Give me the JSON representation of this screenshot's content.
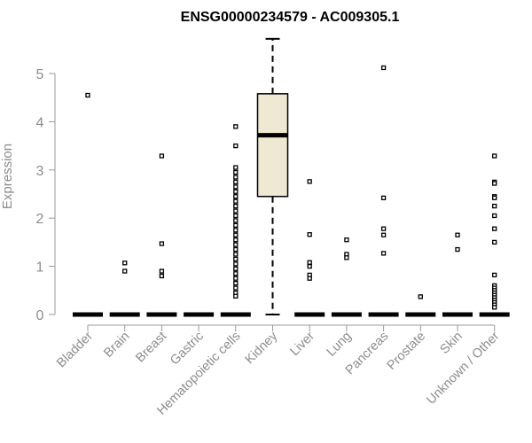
{
  "chart_data": {
    "type": "boxplot",
    "title": "ENSG00000234579 - AC009305.1",
    "xlabel": "",
    "ylabel": "Expression",
    "ylim": [
      0,
      5.7
    ],
    "yticks": [
      0,
      1,
      2,
      3,
      4,
      5
    ],
    "categories": [
      "Bladder",
      "Brain",
      "Breast",
      "Gastric",
      "Hematopoietic cells",
      "Kidney",
      "Liver",
      "Lung",
      "Pancreas",
      "Prostate",
      "Skin",
      "Unknown / Other"
    ],
    "boxes": [
      {
        "category": "Bladder",
        "min": 0,
        "q1": 0,
        "median": 0,
        "q3": 0,
        "max": 0,
        "outliers": [
          4.55
        ]
      },
      {
        "category": "Brain",
        "min": 0,
        "q1": 0,
        "median": 0,
        "q3": 0,
        "max": 0,
        "outliers": [
          1.07,
          0.9
        ]
      },
      {
        "category": "Breast",
        "min": 0,
        "q1": 0,
        "median": 0,
        "q3": 0,
        "max": 0,
        "outliers": [
          3.29,
          1.47,
          0.9,
          0.8
        ]
      },
      {
        "category": "Gastric",
        "min": 0,
        "q1": 0,
        "median": 0,
        "q3": 0,
        "max": 0,
        "outliers": []
      },
      {
        "category": "Hematopoietic cells",
        "min": 0,
        "q1": 0,
        "median": 0,
        "q3": 0,
        "max": 0,
        "outliers": [
          3.9,
          3.5,
          3.05,
          2.95,
          2.85,
          2.75,
          2.65,
          2.55,
          2.45,
          2.35,
          2.25,
          2.15,
          2.05,
          1.95,
          1.85,
          1.75,
          1.65,
          1.55,
          1.45,
          1.35,
          1.25,
          1.15,
          1.05,
          0.95,
          0.85,
          0.75,
          0.65,
          0.55,
          0.45,
          0.38
        ]
      },
      {
        "category": "Kidney",
        "min": 0,
        "q1": 2.45,
        "median": 3.72,
        "q3": 4.58,
        "max": 5.72,
        "outliers": []
      },
      {
        "category": "Liver",
        "min": 0,
        "q1": 0,
        "median": 0,
        "q3": 0,
        "max": 0,
        "outliers": [
          2.76,
          1.66,
          1.08,
          1.0,
          0.82,
          0.75
        ]
      },
      {
        "category": "Lung",
        "min": 0,
        "q1": 0,
        "median": 0,
        "q3": 0,
        "max": 0,
        "outliers": [
          1.55,
          1.25,
          1.18
        ]
      },
      {
        "category": "Pancreas",
        "min": 0,
        "q1": 0,
        "median": 0,
        "q3": 0,
        "max": 0,
        "outliers": [
          5.12,
          2.42,
          1.78,
          1.65,
          1.27
        ]
      },
      {
        "category": "Prostate",
        "min": 0,
        "q1": 0,
        "median": 0,
        "q3": 0,
        "max": 0,
        "outliers": [
          0.37
        ]
      },
      {
        "category": "Skin",
        "min": 0,
        "q1": 0,
        "median": 0,
        "q3": 0,
        "max": 0,
        "outliers": [
          1.65,
          1.35
        ]
      },
      {
        "category": "Unknown / Other",
        "min": 0,
        "q1": 0,
        "median": 0,
        "q3": 0,
        "max": 0,
        "outliers": [
          3.29,
          2.75,
          2.72,
          2.45,
          2.42,
          2.25,
          2.05,
          1.78,
          1.5,
          0.82,
          0.6,
          0.55,
          0.5,
          0.45,
          0.4,
          0.35,
          0.3,
          0.25,
          0.2,
          0.15
        ]
      }
    ],
    "colors": {
      "box_fill": "#efe8d2",
      "stroke": "#000000",
      "axis": "#9a9a9a",
      "label": "#8c8c8c"
    },
    "grid": false,
    "legend": "none"
  }
}
